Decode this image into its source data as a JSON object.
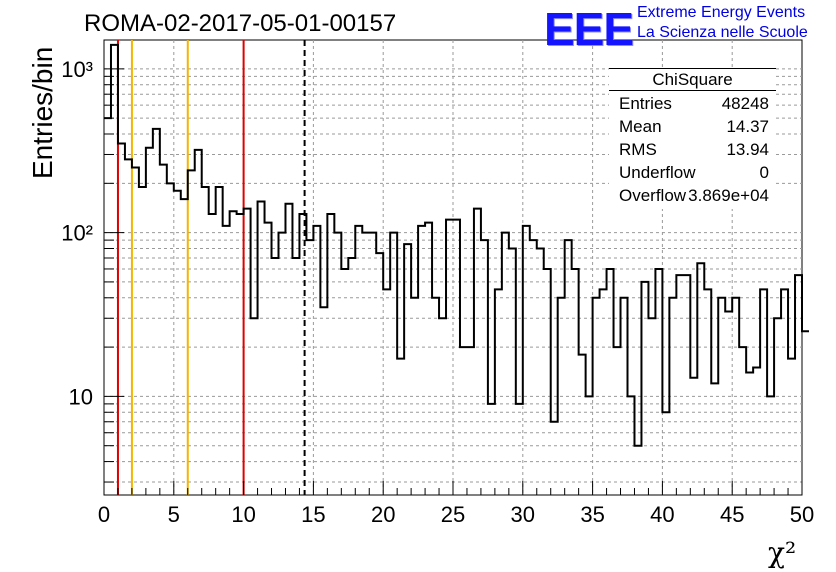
{
  "header": {
    "title": "ROMA-02-2017-05-01-00157",
    "logo_text": "EEE",
    "logo_line1": "Extreme Energy Events",
    "logo_line2": "La Scienza nelle Scuole"
  },
  "stats_box": {
    "title": "ChiSquare",
    "rows": [
      {
        "key": "Entries",
        "value": "48248"
      },
      {
        "key": "Mean",
        "value": "14.37"
      },
      {
        "key": "RMS",
        "value": "13.94"
      },
      {
        "key": "Underflow",
        "value": "0"
      },
      {
        "key": "Overflow",
        "value": "3.869e+04"
      }
    ]
  },
  "chart_data": {
    "type": "bar",
    "style": "step histogram",
    "ylabel": "Entries/bin",
    "xlabel": "χ²",
    "xlim": [
      0,
      50
    ],
    "ylim": [
      2.5,
      1500
    ],
    "yscale": "log",
    "grid": true,
    "bin_width": 0.5,
    "x_ticks": [
      "0",
      "5",
      "10",
      "15",
      "20",
      "25",
      "30",
      "35",
      "40",
      "45",
      "50"
    ],
    "y_ticks": [
      {
        "value": 10,
        "label": "10"
      },
      {
        "value": 100,
        "label": "10²"
      },
      {
        "value": 1000,
        "label": "10³"
      }
    ],
    "values": [
      500,
      1400,
      350,
      280,
      250,
      190,
      330,
      430,
      260,
      200,
      180,
      160,
      240,
      320,
      190,
      130,
      190,
      110,
      135,
      130,
      140,
      30,
      155,
      115,
      70,
      100,
      150,
      70,
      130,
      90,
      110,
      35,
      130,
      100,
      60,
      70,
      110,
      100,
      100,
      75,
      45,
      100,
      17,
      85,
      40,
      110,
      115,
      40,
      30,
      120,
      120,
      20,
      20,
      140,
      90,
      9,
      45,
      100,
      80,
      9,
      110,
      90,
      80,
      60,
      7,
      40,
      90,
      60,
      18,
      10,
      40,
      45,
      60,
      20,
      40,
      10,
      5,
      50,
      30,
      60,
      8,
      40,
      55,
      55,
      13,
      65,
      45,
      12,
      40,
      33,
      40,
      20,
      14,
      15,
      45,
      10,
      30,
      45,
      17,
      55,
      25
    ],
    "vertical_lines": [
      {
        "x": 1,
        "color": "#e00000",
        "style": "solid"
      },
      {
        "x": 2,
        "color": "#f5b400",
        "style": "solid"
      },
      {
        "x": 6,
        "color": "#f5b400",
        "style": "solid"
      },
      {
        "x": 10,
        "color": "#e00000",
        "style": "solid"
      },
      {
        "x": 14.37,
        "color": "#000000",
        "style": "dashed"
      }
    ]
  }
}
